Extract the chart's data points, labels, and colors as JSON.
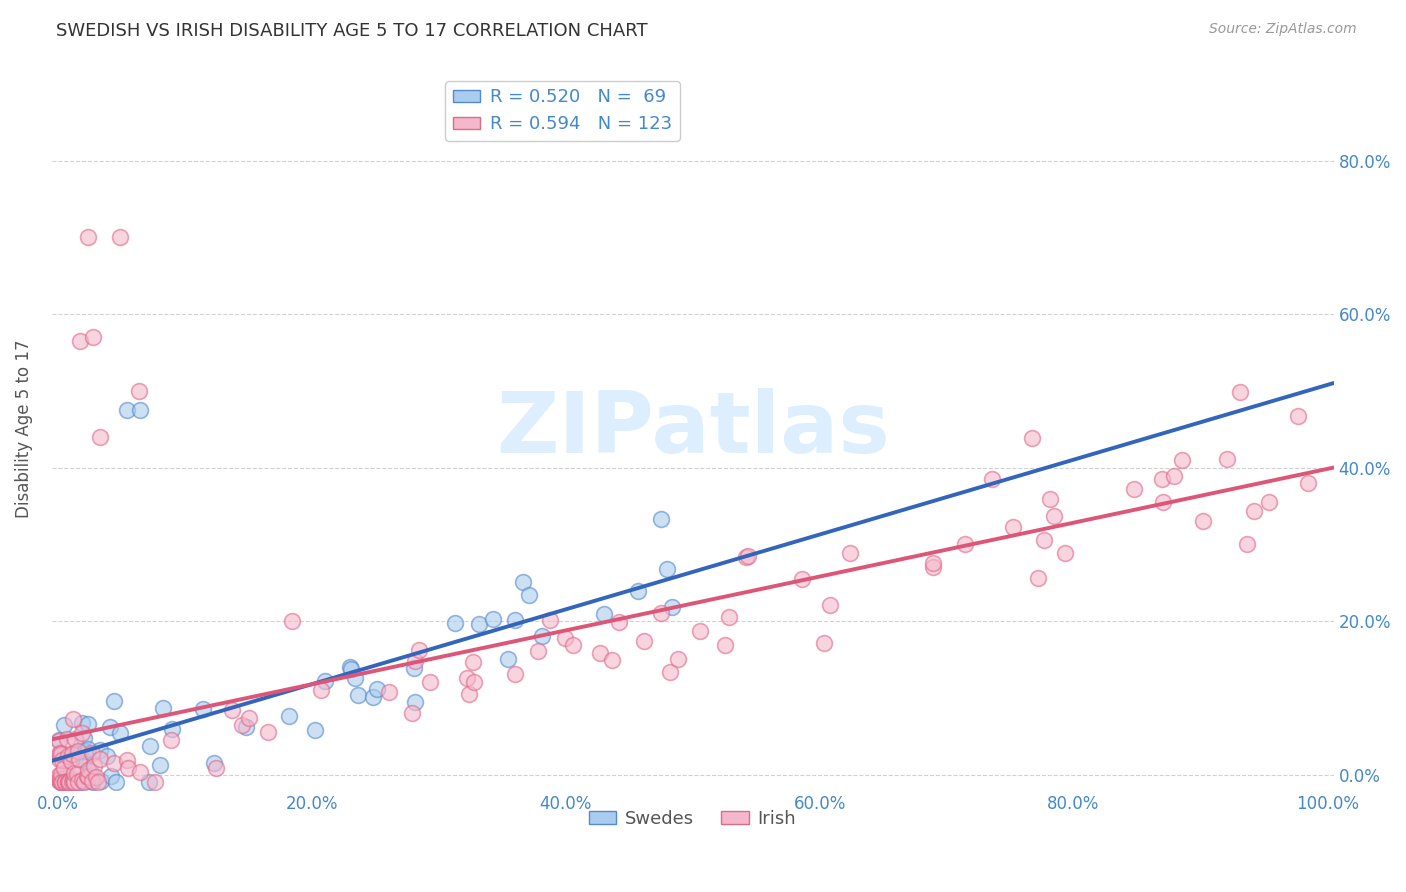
{
  "title": "SWEDISH VS IRISH DISABILITY AGE 5 TO 17 CORRELATION CHART",
  "source": "Source: ZipAtlas.com",
  "ylabel": "Disability Age 5 to 17",
  "legend_labels": [
    "Swedes",
    "Irish"
  ],
  "R_sweden": 0.52,
  "N_sweden": 69,
  "R_irish": 0.594,
  "N_irish": 123,
  "sweden_fill": "#aaccee",
  "sweden_edge": "#5588cc",
  "irish_fill": "#f4b8cc",
  "irish_edge": "#e06888",
  "sweden_line": "#3366bb",
  "irish_line": "#dd5577",
  "background_color": "#ffffff",
  "grid_color": "#cccccc",
  "axis_tick_color": "#4488cc",
  "ylabel_color": "#555555",
  "title_color": "#333333",
  "source_color": "#999999",
  "watermark_color": "#ddeeff",
  "xlim": [
    -0.005,
    1.005
  ],
  "ylim": [
    -0.02,
    0.92
  ],
  "xticks": [
    0.0,
    0.2,
    0.4,
    0.6,
    0.8,
    1.0
  ],
  "yticks": [
    0.0,
    0.2,
    0.4,
    0.6,
    0.8
  ],
  "title_fontsize": 13,
  "source_fontsize": 10,
  "tick_fontsize": 12,
  "ylabel_fontsize": 12,
  "legend_fontsize": 13,
  "marker_size": 130,
  "line_width": 2.8
}
